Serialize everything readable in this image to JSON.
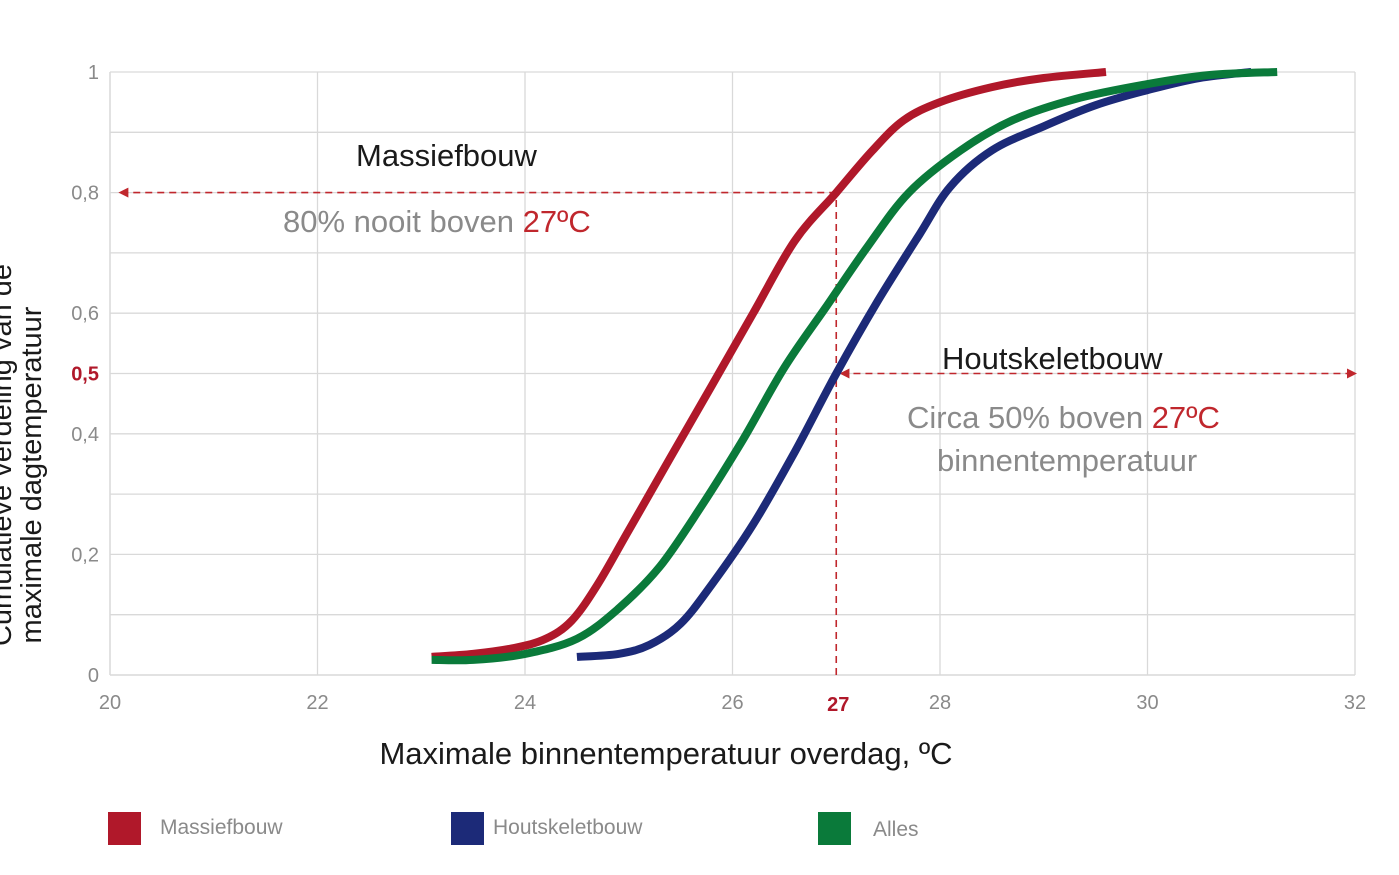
{
  "chart_data": {
    "type": "line",
    "xlabel": "Maximale binnentemperatuur overdag, ºC",
    "ylabel_lines": [
      "Cumulatieve verdeling van de",
      "maximale dagtemperatuur"
    ],
    "xlim": [
      20,
      32
    ],
    "ylim": [
      0,
      1
    ],
    "x_ticks": [
      20,
      22,
      24,
      26,
      28,
      30,
      32
    ],
    "x_tick_labels": [
      "20",
      "22",
      "24",
      "26",
      "28",
      "30",
      "32"
    ],
    "x_highlight_tick": {
      "value": 27,
      "label": "27"
    },
    "y_ticks": [
      0,
      0.2,
      0.4,
      0.6,
      0.8,
      1
    ],
    "y_tick_labels": [
      "0",
      "0,2",
      "0,4",
      "0,6",
      "0,8",
      "1"
    ],
    "y_highlight_tick": {
      "value": 0.5,
      "label": "0,5"
    },
    "y_gridlines": [
      0.1,
      0.2,
      0.3,
      0.4,
      0.5,
      0.6,
      0.7,
      0.8,
      0.9,
      1.0
    ],
    "series": [
      {
        "name": "Massiefbouw",
        "color": "#b0182a",
        "points": [
          [
            23.1,
            0.03
          ],
          [
            23.5,
            0.035
          ],
          [
            23.9,
            0.045
          ],
          [
            24.2,
            0.06
          ],
          [
            24.45,
            0.09
          ],
          [
            24.7,
            0.15
          ],
          [
            25.0,
            0.24
          ],
          [
            25.4,
            0.36
          ],
          [
            25.8,
            0.48
          ],
          [
            26.2,
            0.6
          ],
          [
            26.6,
            0.72
          ],
          [
            27.0,
            0.8
          ],
          [
            27.35,
            0.87
          ],
          [
            27.65,
            0.92
          ],
          [
            28.0,
            0.95
          ],
          [
            28.5,
            0.975
          ],
          [
            29.0,
            0.99
          ],
          [
            29.6,
            1.0
          ]
        ]
      },
      {
        "name": "Houtskeletbouw",
        "color": "#1c2a78",
        "points": [
          [
            24.5,
            0.03
          ],
          [
            24.9,
            0.035
          ],
          [
            25.2,
            0.05
          ],
          [
            25.5,
            0.085
          ],
          [
            25.8,
            0.15
          ],
          [
            26.2,
            0.25
          ],
          [
            26.6,
            0.37
          ],
          [
            27.0,
            0.5
          ],
          [
            27.4,
            0.62
          ],
          [
            27.8,
            0.73
          ],
          [
            28.1,
            0.81
          ],
          [
            28.5,
            0.87
          ],
          [
            29.0,
            0.91
          ],
          [
            29.5,
            0.945
          ],
          [
            30.0,
            0.97
          ],
          [
            30.5,
            0.99
          ],
          [
            31.0,
            1.0
          ]
        ]
      },
      {
        "name": "Alles",
        "color": "#0a7a3a",
        "points": [
          [
            23.1,
            0.025
          ],
          [
            23.5,
            0.025
          ],
          [
            24.0,
            0.035
          ],
          [
            24.5,
            0.06
          ],
          [
            24.9,
            0.11
          ],
          [
            25.3,
            0.18
          ],
          [
            25.7,
            0.28
          ],
          [
            26.1,
            0.39
          ],
          [
            26.5,
            0.51
          ],
          [
            26.9,
            0.61
          ],
          [
            27.3,
            0.71
          ],
          [
            27.7,
            0.8
          ],
          [
            28.2,
            0.87
          ],
          [
            28.7,
            0.92
          ],
          [
            29.3,
            0.955
          ],
          [
            30.0,
            0.98
          ],
          [
            30.6,
            0.995
          ],
          [
            31.25,
            1.0
          ]
        ]
      }
    ],
    "reference_lines": [
      {
        "type": "vertical",
        "x": 27,
        "y_from": 0,
        "y_to": 0.8,
        "color": "#c0272d"
      },
      {
        "type": "arrow",
        "direction": "left",
        "y": 0.8,
        "x_from": 27,
        "x_to": 20.1,
        "color": "#c0272d"
      },
      {
        "type": "arrow",
        "direction": "both",
        "y": 0.5,
        "x_from": 27.05,
        "x_to": 32.0,
        "color": "#c0272d"
      }
    ],
    "legend_position": "bottom"
  },
  "annotations": {
    "massief_title": "Massiefbouw",
    "massief_desc_part1": "80% nooit boven ",
    "massief_desc_highlight": "27ºC",
    "hout_title": "Houtskeletbouw",
    "hout_desc_part1": "Circa 50% boven ",
    "hout_desc_highlight": "27ºC",
    "hout_desc_line2": "binnentemperatuur"
  },
  "legend": [
    {
      "label": "Massiefbouw",
      "color": "#b0182a"
    },
    {
      "label": "Houtskeletbouw",
      "color": "#1c2a78"
    },
    {
      "label": "Alles",
      "color": "#0a7a3a"
    }
  ],
  "colors": {
    "grid": "#d9d9d9",
    "axis_text": "#8a8a8a",
    "highlight": "#c0272d"
  }
}
